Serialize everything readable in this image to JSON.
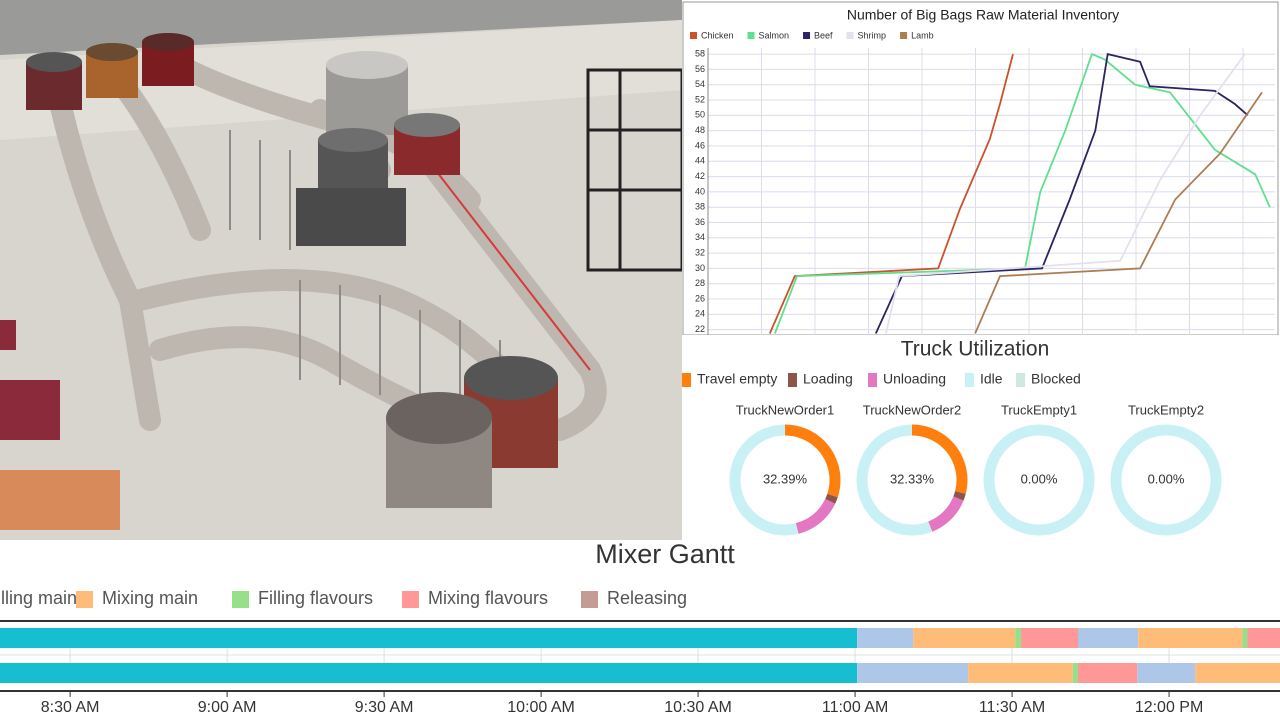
{
  "inventory_chart": {
    "type": "line",
    "title": "Number of Big Bags Raw Material Inventory",
    "xlim": [
      0,
      100
    ],
    "ylim": [
      21.3,
      58.8
    ],
    "yticks": [
      22,
      24,
      26,
      28,
      30,
      32,
      34,
      36,
      38,
      40,
      42,
      44,
      46,
      48,
      50,
      52,
      54,
      56,
      58
    ],
    "grid": true,
    "series": [
      {
        "name": "Chicken",
        "color": "#c9532b",
        "x": [
          10.9,
          15.3,
          40.6,
          44.4,
          49.7,
          51.5,
          53.8
        ],
        "values": [
          21.5,
          29,
          30,
          37.7,
          46.9,
          51.5,
          58
        ]
      },
      {
        "name": "Salmon",
        "color": "#5fe08c",
        "x": [
          11.8,
          15.7,
          55.9,
          58.6,
          63,
          67.7,
          70,
          75.3,
          81.5,
          89.4,
          96.5,
          99.1
        ],
        "values": [
          21.5,
          29,
          30,
          40,
          48,
          58,
          57.3,
          54,
          53,
          45.5,
          42.3,
          38
        ]
      },
      {
        "name": "Beef",
        "color": "#2b2462",
        "x": [
          29.6,
          34.2,
          58.9,
          63.8,
          68.3,
          70.5,
          76.2,
          77.9,
          89.4,
          92.9,
          95.2
        ],
        "values": [
          21.5,
          29,
          30,
          39,
          48,
          58,
          57,
          53.8,
          53.2,
          51.5,
          50
        ]
      },
      {
        "name": "Shrimp",
        "color": "#e4e0ee",
        "x": [
          31.4,
          33.7,
          72.7,
          79.7,
          86.8,
          94.7
        ],
        "values": [
          21.5,
          29,
          31,
          41.5,
          50,
          58
        ]
      },
      {
        "name": "Lamb",
        "color": "#ad7d52",
        "x": [
          47.1,
          51.5,
          76.2,
          82.4,
          90.3,
          97.7
        ],
        "values": [
          21.5,
          29,
          30,
          39,
          45,
          53
        ]
      }
    ]
  },
  "truck_utilization": {
    "type": "donut",
    "title": "Truck Utilization",
    "legend": [
      {
        "name": "Travel empty",
        "color": "#ff7f0e"
      },
      {
        "name": "Loading",
        "color": "#8c564b"
      },
      {
        "name": "Unloading",
        "color": "#e377c2"
      },
      {
        "name": "Idle",
        "color": "#c9f1f5"
      },
      {
        "name": "Blocked",
        "color": "#cfe9e1"
      }
    ],
    "trucks": [
      {
        "name": "TruckNewOrder1",
        "values": [
          30,
          2,
          14,
          54,
          0
        ],
        "center": "32.39%"
      },
      {
        "name": "TruckNewOrder2",
        "values": [
          29,
          2,
          13,
          56,
          0
        ],
        "center": "32.33%"
      },
      {
        "name": "TruckEmpty1",
        "values": [
          0,
          0,
          0,
          100,
          0
        ],
        "center": "0.00%"
      },
      {
        "name": "TruckEmpty2",
        "values": [
          0,
          0,
          0,
          100,
          0
        ],
        "center": "0.00%"
      }
    ]
  },
  "mixer_gantt": {
    "type": "gantt",
    "title": "Mixer Gantt",
    "xlim": [
      496.6,
      741.2
    ],
    "xticks": [
      {
        "value": 510,
        "label": "8:30 AM"
      },
      {
        "value": 540,
        "label": "9:00 AM"
      },
      {
        "value": 570,
        "label": "9:30 AM"
      },
      {
        "value": 600,
        "label": "10:00 AM"
      },
      {
        "value": 630,
        "label": "10:30 AM"
      },
      {
        "value": 660,
        "label": "11:00 AM"
      },
      {
        "value": 690,
        "label": "11:30 AM"
      },
      {
        "value": 720,
        "label": "12:00 PM"
      }
    ],
    "series": [
      {
        "color": "#17becf",
        "segments": [
          {
            "row": 0,
            "start": 496.6,
            "end": 660.4
          },
          {
            "row": 1,
            "start": 496.6,
            "end": 660.4
          }
        ]
      },
      {
        "name": "Filling main",
        "color": "#aec7e8",
        "segments": [
          {
            "row": 0,
            "start": 660.4,
            "end": 671.1
          },
          {
            "row": 0,
            "start": 702.6,
            "end": 714.1
          },
          {
            "row": 1,
            "start": 660.4,
            "end": 681.6
          },
          {
            "row": 1,
            "start": 713.9,
            "end": 725
          }
        ]
      },
      {
        "name": "Mixing main",
        "color": "#ffbb78",
        "segments": [
          {
            "row": 0,
            "start": 671.1,
            "end": 690.6
          },
          {
            "row": 0,
            "start": 714.1,
            "end": 734
          },
          {
            "row": 1,
            "start": 681.6,
            "end": 701.6
          },
          {
            "row": 1,
            "start": 725,
            "end": 741.2
          }
        ]
      },
      {
        "name": "Filling flavours",
        "color": "#98df8a",
        "segments": [
          {
            "row": 0,
            "start": 690.6,
            "end": 691.7
          },
          {
            "row": 0,
            "start": 734,
            "end": 735
          },
          {
            "row": 1,
            "start": 701.6,
            "end": 702.6
          }
        ]
      },
      {
        "name": "Mixing flavours",
        "color": "#ff9896",
        "segments": [
          {
            "row": 0,
            "start": 691.7,
            "end": 702.6
          },
          {
            "row": 0,
            "start": 735,
            "end": 741.2
          },
          {
            "row": 1,
            "start": 702.6,
            "end": 713.9
          }
        ]
      },
      {
        "name": "Releasing",
        "color": "#c49c94",
        "segments": []
      }
    ]
  }
}
